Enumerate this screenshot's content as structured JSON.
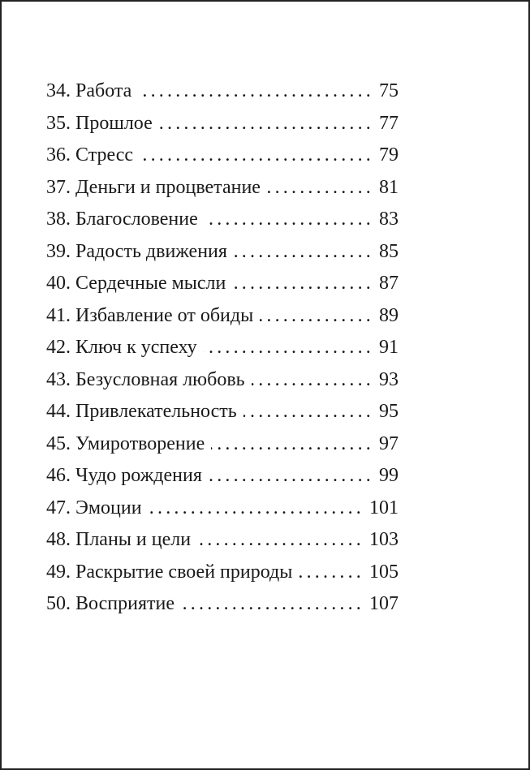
{
  "toc": {
    "entries": [
      {
        "title": "34. Работа",
        "page": "75"
      },
      {
        "title": "35. Прошлое",
        "page": "77"
      },
      {
        "title": "36. Стресс",
        "page": "79"
      },
      {
        "title": "37. Деньги и процветание",
        "page": "81"
      },
      {
        "title": "38. Благословение",
        "page": "83"
      },
      {
        "title": "39. Радость движения",
        "page": "85"
      },
      {
        "title": "40. Сердечные мысли",
        "page": "87"
      },
      {
        "title": "41. Избавление от обиды",
        "page": "89"
      },
      {
        "title": "42. Ключ к успеху",
        "page": "91"
      },
      {
        "title": "43. Безусловная любовь",
        "page": "93"
      },
      {
        "title": "44. Привлекательность",
        "page": "95"
      },
      {
        "title": "45. Умиротворение",
        "page": "97"
      },
      {
        "title": "46. Чудо рождения",
        "page": "99"
      },
      {
        "title": "47. Эмоции",
        "page": "101"
      },
      {
        "title": "48. Планы и цели",
        "page": "103"
      },
      {
        "title": "49. Раскрытие своей природы",
        "page": "105"
      },
      {
        "title": "50. Восприятие",
        "page": "107"
      }
    ]
  }
}
